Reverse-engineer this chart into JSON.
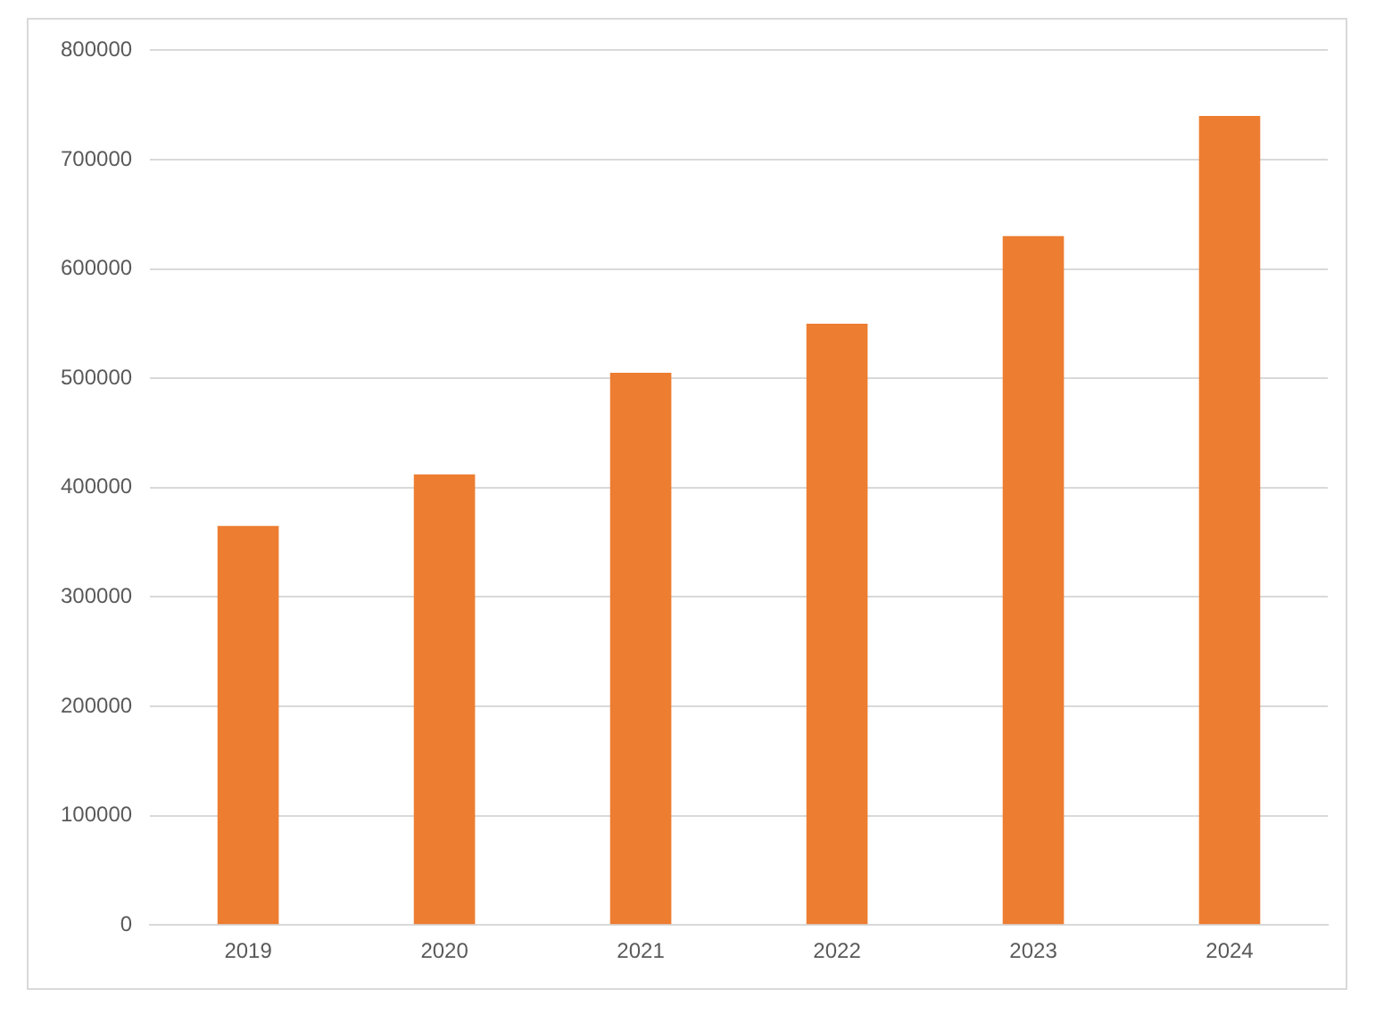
{
  "chart_data": {
    "type": "bar",
    "categories": [
      "2019",
      "2020",
      "2021",
      "2022",
      "2023",
      "2024"
    ],
    "values": [
      365000,
      412000,
      505000,
      550000,
      630000,
      740000
    ],
    "color": "#ed7d31",
    "ylim": [
      0,
      800000
    ],
    "yticks": [
      0,
      100000,
      200000,
      300000,
      400000,
      500000,
      600000,
      700000,
      800000
    ],
    "grid": "y",
    "legend": false
  }
}
